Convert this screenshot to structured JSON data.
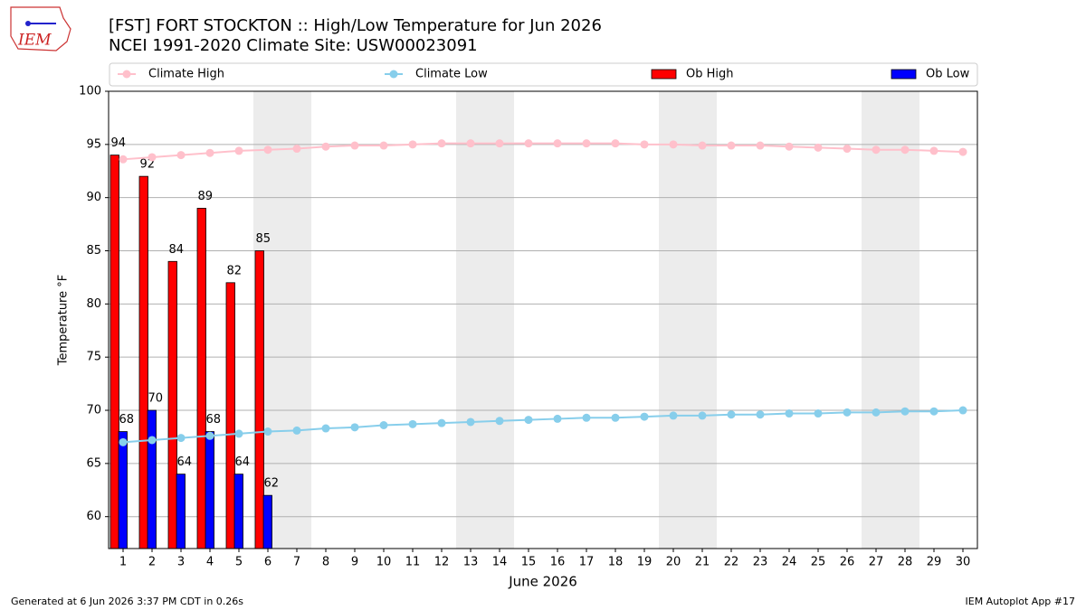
{
  "logo_text": "IEM",
  "chart_data": {
    "type": "bar",
    "title": "[FST] FORT STOCKTON :: High/Low Temperature for Jun 2026",
    "subtitle": "NCEI 1991-2020 Climate Site: USW00023091",
    "x_label": "June 2026",
    "y_label": "Temperature °F",
    "x": [
      1,
      2,
      3,
      4,
      5,
      6,
      7,
      8,
      9,
      10,
      11,
      12,
      13,
      14,
      15,
      16,
      17,
      18,
      19,
      20,
      21,
      22,
      23,
      24,
      25,
      26,
      27,
      28,
      29,
      30
    ],
    "xlim": [
      0.5,
      30.5
    ],
    "xticks": [
      1,
      2,
      3,
      4,
      5,
      6,
      7,
      8,
      9,
      10,
      11,
      12,
      13,
      14,
      15,
      16,
      17,
      18,
      19,
      20,
      21,
      22,
      23,
      24,
      25,
      26,
      27,
      28,
      29,
      30
    ],
    "ylim": [
      57,
      100
    ],
    "yticks": [
      60,
      65,
      70,
      75,
      80,
      85,
      90,
      95,
      100
    ],
    "grid": true,
    "shaded_days": [
      6,
      7,
      13,
      14,
      20,
      21,
      27,
      28
    ],
    "series": [
      {
        "name": "Climate High",
        "type": "line",
        "color": "#ffc0cb",
        "values": [
          93.6,
          93.8,
          94.0,
          94.2,
          94.4,
          94.5,
          94.6,
          94.8,
          94.9,
          94.9,
          95.0,
          95.1,
          95.1,
          95.1,
          95.1,
          95.1,
          95.1,
          95.1,
          95.0,
          95.0,
          94.9,
          94.9,
          94.9,
          94.8,
          94.7,
          94.6,
          94.5,
          94.5,
          94.4,
          94.3
        ]
      },
      {
        "name": "Climate Low",
        "type": "line",
        "color": "#87ceeb",
        "values": [
          67.0,
          67.2,
          67.4,
          67.6,
          67.8,
          68.0,
          68.1,
          68.3,
          68.4,
          68.6,
          68.7,
          68.8,
          68.9,
          69.0,
          69.1,
          69.2,
          69.3,
          69.3,
          69.4,
          69.5,
          69.5,
          69.6,
          69.6,
          69.7,
          69.7,
          69.8,
          69.8,
          69.9,
          69.9,
          70.0
        ]
      },
      {
        "name": "Ob High",
        "type": "bar",
        "color": "#ff0000",
        "values": [
          94,
          92,
          84,
          89,
          82,
          85,
          null,
          null,
          null,
          null,
          null,
          null,
          null,
          null,
          null,
          null,
          null,
          null,
          null,
          null,
          null,
          null,
          null,
          null,
          null,
          null,
          null,
          null,
          null,
          null
        ]
      },
      {
        "name": "Ob Low",
        "type": "bar",
        "color": "#0000ff",
        "values": [
          68,
          70,
          64,
          68,
          64,
          62,
          null,
          null,
          null,
          null,
          null,
          null,
          null,
          null,
          null,
          null,
          null,
          null,
          null,
          null,
          null,
          null,
          null,
          null,
          null,
          null,
          null,
          null,
          null,
          null
        ]
      }
    ],
    "footer_left": "Generated at 6 Jun 2026 3:37 PM CDT in 0.26s",
    "footer_right": "IEM Autoplot App #17"
  }
}
